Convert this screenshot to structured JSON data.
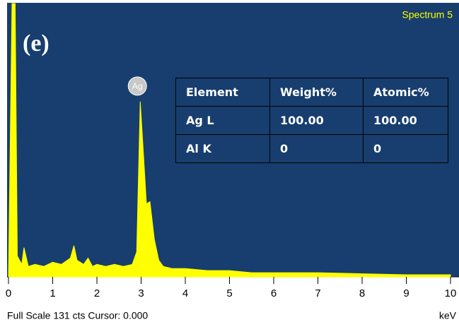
{
  "chart_data": {
    "type": "line",
    "title": "Spectrum 5",
    "panel_label": "(e)",
    "annotation": "Ag",
    "footer": "Full Scale 131 cts Cursor: 0.000",
    "x_label": "keV",
    "color": "#ffff00",
    "x": [
      0.0,
      0.08,
      0.15,
      0.2,
      0.3,
      0.35,
      0.45,
      0.6,
      0.8,
      1.0,
      1.2,
      1.4,
      1.48,
      1.55,
      1.7,
      1.8,
      1.9,
      2.0,
      2.2,
      2.4,
      2.6,
      2.8,
      2.9,
      2.98,
      3.05,
      3.12,
      3.2,
      3.3,
      3.4,
      3.5,
      3.7,
      4.0,
      4.5,
      5.0,
      5.5,
      6.0,
      7.0,
      8.0,
      9.0,
      10.0
    ],
    "values": [
      0,
      131,
      131,
      10,
      6,
      14,
      5,
      6,
      5,
      7,
      6,
      9,
      15,
      8,
      6,
      9,
      5,
      6,
      5,
      6,
      5,
      6,
      12,
      84,
      60,
      35,
      36,
      18,
      8,
      5,
      4,
      4,
      3,
      3,
      2,
      2,
      2,
      1.5,
      1,
      1
    ],
    "xlim": [
      0,
      10
    ],
    "xticks": [
      0,
      1,
      2,
      3,
      4,
      5,
      6,
      7,
      8,
      9,
      10
    ],
    "ylim": [
      0,
      131
    ],
    "table": {
      "header": [
        "Element",
        "Weight%",
        "Atomic%"
      ],
      "rows": [
        [
          "Ag L",
          "100.00",
          "100.00"
        ],
        [
          "Al K",
          "0",
          "0"
        ]
      ]
    }
  }
}
